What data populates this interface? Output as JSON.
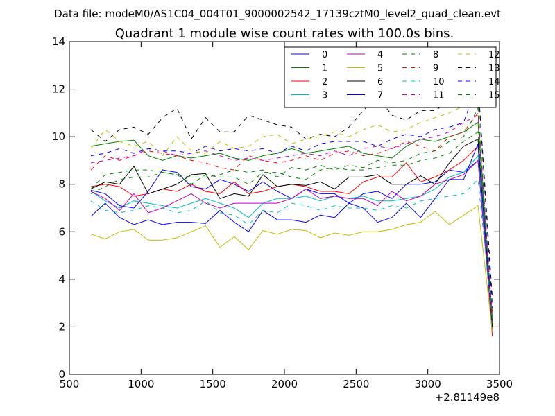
{
  "header": {
    "file_label": "Data file: modeM0/AS1C04_004T01_9000002542_17139cztM0_level2_quad_clean.evt"
  },
  "chart_data": {
    "type": "line",
    "title": "Quadrant 1 module wise count rates with 100.0s bins.",
    "xlabel": "",
    "ylabel": "",
    "xlim": [
      500,
      3500
    ],
    "ylim": [
      0,
      14
    ],
    "x_offset_label": "+2.81149e8",
    "x_ticks": [
      500,
      1000,
      1500,
      2000,
      2500,
      3000,
      3500
    ],
    "y_ticks": [
      0,
      2,
      4,
      6,
      8,
      10,
      12,
      14
    ],
    "grid": false,
    "legend": {
      "placement": "top-right",
      "columns": 4
    },
    "x": [
      650,
      750,
      850,
      950,
      1050,
      1150,
      1250,
      1350,
      1450,
      1550,
      1650,
      1750,
      1850,
      1950,
      2050,
      2150,
      2250,
      2350,
      2450,
      2550,
      2650,
      2750,
      2850,
      2950,
      3050,
      3150,
      3250,
      3350,
      3450
    ],
    "series": [
      {
        "name": "0",
        "color": "#0000ff",
        "style": "solid",
        "values": [
          7.75,
          7.6,
          7.1,
          7.0,
          7.7,
          8.6,
          8.5,
          7.9,
          7.8,
          8.2,
          8.0,
          7.7,
          8.1,
          7.7,
          7.4,
          7.8,
          7.6,
          7.6,
          7.2,
          7.6,
          7.7,
          7.4,
          8.0,
          8.0,
          8.1,
          8.6,
          8.5,
          9.0,
          1.8
        ]
      },
      {
        "name": "1",
        "color": "#008000",
        "style": "solid",
        "values": [
          9.6,
          9.7,
          9.8,
          9.85,
          9.2,
          9.0,
          9.2,
          9.1,
          9.2,
          9.3,
          9.1,
          9.0,
          9.2,
          9.3,
          9.5,
          9.3,
          9.4,
          9.5,
          9.6,
          9.3,
          9.2,
          9.1,
          9.6,
          9.9,
          9.8,
          10.0,
          10.2,
          10.6,
          2.0
        ]
      },
      {
        "name": "2",
        "color": "#ff0000",
        "style": "solid",
        "values": [
          7.9,
          8.0,
          7.9,
          7.5,
          7.6,
          7.8,
          7.7,
          8.0,
          7.7,
          7.6,
          8.1,
          7.6,
          7.7,
          7.9,
          8.0,
          7.9,
          7.7,
          7.7,
          7.6,
          8.1,
          8.3,
          8.3,
          8.9,
          8.1,
          8.3,
          8.6,
          9.0,
          9.6,
          1.6
        ]
      },
      {
        "name": "3",
        "color": "#00bfbf",
        "style": "solid",
        "values": [
          7.7,
          7.3,
          7.0,
          7.3,
          7.2,
          7.1,
          7.0,
          7.2,
          7.4,
          7.2,
          7.0,
          6.6,
          7.2,
          7.4,
          7.4,
          7.5,
          7.3,
          7.5,
          7.4,
          7.5,
          7.3,
          7.3,
          7.4,
          7.5,
          7.8,
          8.3,
          8.5,
          9.2,
          2.4
        ]
      },
      {
        "name": "4",
        "color": "#bf00bf",
        "style": "solid",
        "values": [
          7.7,
          7.4,
          6.9,
          7.6,
          6.8,
          7.0,
          7.3,
          7.6,
          7.2,
          7.0,
          7.2,
          7.2,
          7.2,
          7.2,
          7.4,
          7.8,
          7.4,
          7.5,
          7.4,
          7.4,
          7.1,
          7.7,
          7.3,
          7.5,
          8.0,
          8.2,
          8.4,
          9.0,
          1.9
        ]
      },
      {
        "name": "5",
        "color": "#bfbf00",
        "style": "solid",
        "values": [
          5.9,
          5.7,
          6.0,
          6.1,
          5.65,
          5.65,
          5.75,
          6.0,
          6.25,
          5.35,
          5.8,
          5.25,
          6.05,
          5.9,
          6.1,
          6.05,
          5.75,
          5.95,
          5.85,
          6.0,
          6.0,
          6.1,
          6.3,
          6.4,
          6.85,
          6.3,
          6.7,
          7.1,
          1.8
        ]
      },
      {
        "name": "6",
        "color": "#000000",
        "style": "solid",
        "values": [
          7.8,
          8.1,
          8.0,
          8.75,
          7.6,
          7.8,
          8.0,
          8.4,
          8.45,
          7.4,
          7.6,
          7.5,
          8.4,
          7.9,
          8.0,
          7.95,
          8.1,
          7.8,
          8.3,
          8.3,
          8.4,
          8.0,
          8.0,
          8.35,
          8.0,
          8.9,
          9.6,
          9.9,
          2.0
        ]
      },
      {
        "name": "7",
        "color": "#0000ff",
        "style": "solid",
        "values": [
          6.65,
          7.2,
          6.6,
          6.3,
          6.5,
          6.3,
          6.4,
          6.4,
          6.35,
          6.9,
          6.4,
          6.0,
          6.9,
          6.5,
          6.5,
          6.4,
          6.7,
          6.6,
          7.2,
          7.0,
          6.4,
          6.6,
          7.2,
          6.6,
          7.4,
          8.2,
          8.2,
          9.7,
          2.2
        ]
      },
      {
        "name": "8",
        "color": "#008000",
        "style": "dashed",
        "values": [
          7.8,
          8.4,
          8.5,
          8.6,
          8.6,
          8.5,
          8.4,
          8.0,
          8.4,
          8.3,
          8.3,
          8.0,
          8.5,
          8.5,
          8.3,
          8.2,
          8.6,
          8.7,
          8.6,
          8.6,
          8.7,
          8.8,
          8.8,
          9.0,
          9.1,
          9.3,
          9.8,
          10.2,
          2.0
        ]
      },
      {
        "name": "9",
        "color": "#ff0000",
        "style": "dashed",
        "values": [
          8.6,
          9.2,
          9.0,
          9.2,
          9.4,
          9.3,
          9.2,
          9.0,
          8.9,
          8.7,
          8.6,
          9.2,
          9.0,
          8.9,
          9.0,
          9.2,
          9.0,
          9.3,
          9.4,
          9.2,
          9.3,
          9.5,
          9.8,
          9.6,
          9.4,
          10.0,
          10.2,
          11.0,
          2.6
        ]
      },
      {
        "name": "10",
        "color": "#00bfbf",
        "style": "dashed",
        "values": [
          7.3,
          6.9,
          6.8,
          6.9,
          7.1,
          7.0,
          6.8,
          6.9,
          7.3,
          6.8,
          6.7,
          6.3,
          6.9,
          6.8,
          7.2,
          7.1,
          6.9,
          7.1,
          7.0,
          7.0,
          6.9,
          7.1,
          7.0,
          7.3,
          7.4,
          7.5,
          7.6,
          8.2,
          2.3
        ]
      },
      {
        "name": "11",
        "color": "#bf00bf",
        "style": "dashed",
        "values": [
          8.9,
          9.0,
          9.1,
          9.2,
          9.5,
          9.4,
          9.2,
          9.3,
          9.4,
          9.2,
          9.0,
          9.1,
          9.0,
          9.1,
          9.2,
          9.3,
          9.2,
          9.4,
          9.2,
          9.5,
          9.6,
          9.5,
          9.7,
          9.9,
          10.0,
          10.2,
          10.6,
          10.9,
          2.4
        ]
      },
      {
        "name": "12",
        "color": "#bfbf00",
        "style": "dashed",
        "values": [
          9.5,
          10.3,
          9.8,
          9.6,
          9.8,
          9.2,
          10.0,
          9.4,
          9.3,
          9.8,
          9.5,
          9.6,
          10.0,
          10.1,
          9.7,
          9.9,
          10.0,
          10.2,
          10.0,
          10.3,
          10.5,
          10.2,
          10.3,
          10.6,
          10.8,
          11.0,
          11.3,
          11.6,
          3.0
        ]
      },
      {
        "name": "13",
        "color": "#000000",
        "style": "dashed",
        "values": [
          10.3,
          9.8,
          10.3,
          10.4,
          10.1,
          10.8,
          11.2,
          9.9,
          10.8,
          10.2,
          10.2,
          10.9,
          10.7,
          10.5,
          10.4,
          9.9,
          10.1,
          10.0,
          10.4,
          11.1,
          11.7,
          10.9,
          10.7,
          11.1,
          11.1,
          11.5,
          11.8,
          12.3,
          3.2
        ]
      },
      {
        "name": "14",
        "color": "#0000ff",
        "style": "dashed",
        "values": [
          9.2,
          9.3,
          9.5,
          9.3,
          9.5,
          9.4,
          9.4,
          9.3,
          9.6,
          9.4,
          9.5,
          9.4,
          9.5,
          9.3,
          9.6,
          9.4,
          9.7,
          9.8,
          9.8,
          9.8,
          9.6,
          9.9,
          10.1,
          10.0,
          10.3,
          10.4,
          10.6,
          12.3,
          2.8
        ]
      },
      {
        "name": "15",
        "color": "#008000",
        "style": "dashed",
        "values": [
          7.6,
          7.9,
          8.2,
          8.3,
          8.3,
          8.5,
          8.4,
          8.3,
          8.3,
          8.4,
          8.6,
          8.5,
          8.6,
          8.3,
          8.7,
          8.6,
          8.8,
          8.6,
          8.8,
          8.7,
          9.0,
          8.9,
          9.0,
          9.3,
          9.4,
          9.8,
          10.0,
          11.2,
          2.2
        ]
      }
    ]
  }
}
